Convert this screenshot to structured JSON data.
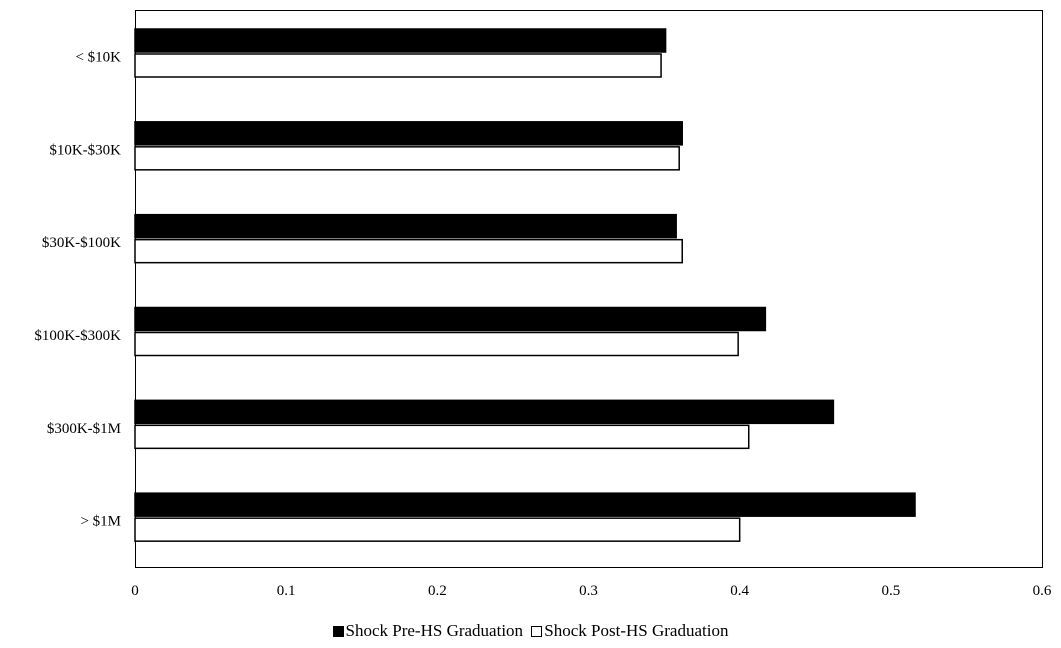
{
  "chart_data": {
    "type": "bar",
    "orientation": "horizontal",
    "categories": [
      "< $10K",
      "$10K-$30K",
      "$30K-$100K",
      "$100K-$300K",
      "$300K-$1M",
      "> $1M"
    ],
    "series": [
      {
        "name": "Shock Pre-HS Graduation",
        "fill": "#000000",
        "stroke": "#000000",
        "values": [
          0.351,
          0.362,
          0.358,
          0.417,
          0.462,
          0.516
        ]
      },
      {
        "name": "Shock Post-HS Graduation",
        "fill": "#ffffff",
        "stroke": "#000000",
        "values": [
          0.348,
          0.36,
          0.362,
          0.399,
          0.406,
          0.4
        ]
      }
    ],
    "xlim": [
      0,
      0.6
    ],
    "xticks": [
      0,
      0.1,
      0.2,
      0.3,
      0.4,
      0.5,
      0.6
    ],
    "xtick_labels": [
      "0",
      "0.1",
      "0.2",
      "0.3",
      "0.4",
      "0.5",
      "0.6"
    ],
    "grid": false,
    "legend_position": "bottom-center"
  }
}
